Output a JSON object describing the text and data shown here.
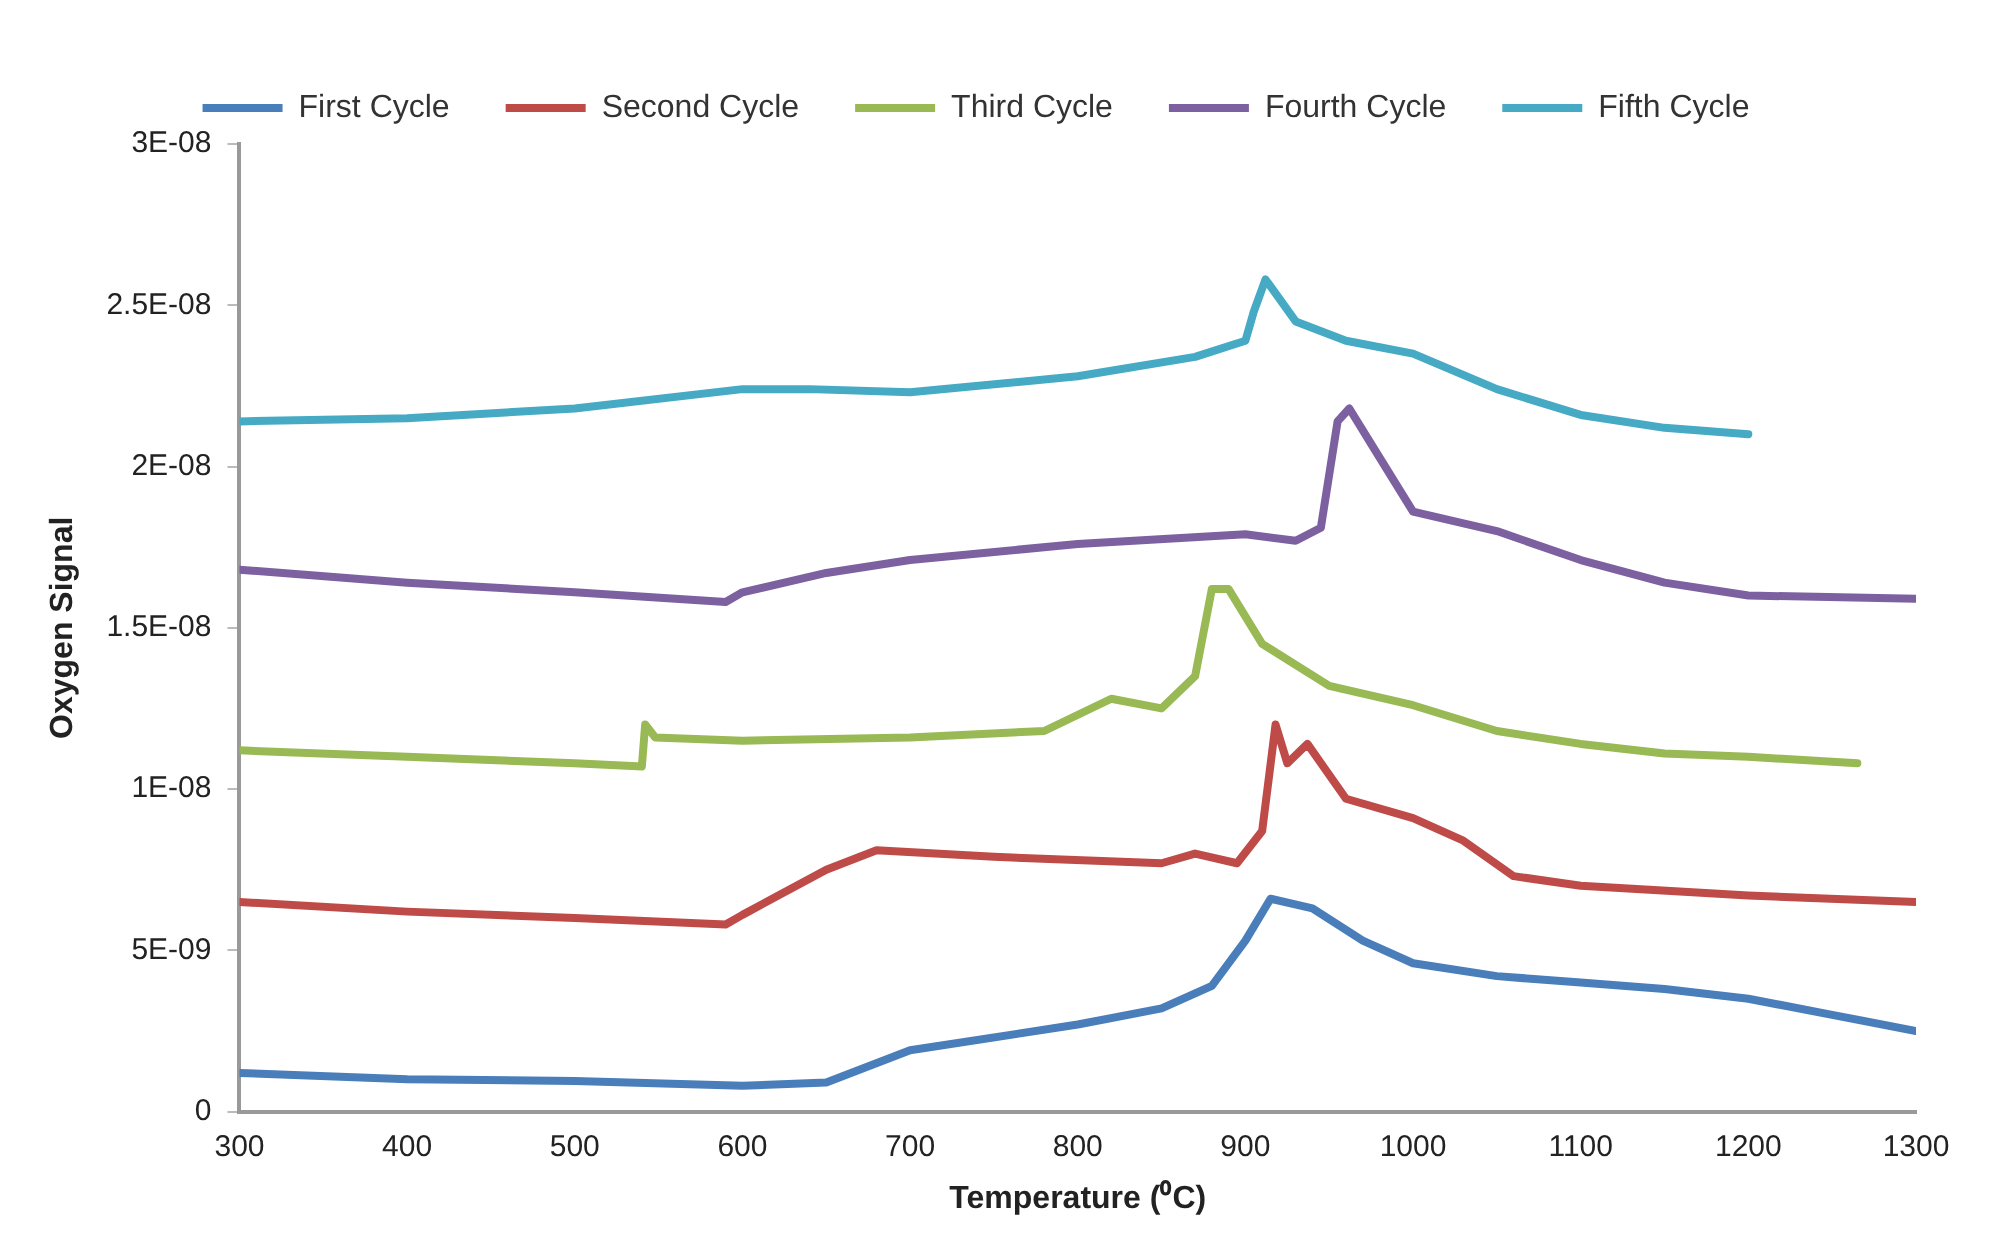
{
  "chart_data": {
    "type": "line",
    "xlabel": "Temperature (⁰C)",
    "ylabel": "Oxygen Signal",
    "legend": "top",
    "grid": false,
    "marker": "none",
    "line_style": "solid",
    "xlim": [
      300,
      1300
    ],
    "xticks": [
      300,
      400,
      500,
      600,
      700,
      800,
      900,
      1000,
      1100,
      1200,
      1300
    ],
    "ylim": [
      0,
      3e-08
    ],
    "yticks": [
      {
        "value": 0,
        "label": "0"
      },
      {
        "value": 5e-09,
        "label": "5E-09"
      },
      {
        "value": 1e-08,
        "label": "1E-08"
      },
      {
        "value": 1.5e-08,
        "label": "1.5E-08"
      },
      {
        "value": 2e-08,
        "label": "2E-08"
      },
      {
        "value": 2.5e-08,
        "label": "2.5E-08"
      },
      {
        "value": 3e-08,
        "label": "3E-08"
      }
    ],
    "series": [
      {
        "name": "First Cycle",
        "color": "#4a7ebb",
        "x": [
          300,
          400,
          500,
          600,
          650,
          700,
          800,
          850,
          880,
          900,
          915,
          940,
          970,
          1000,
          1050,
          1100,
          1150,
          1200,
          1250,
          1300
        ],
        "values": [
          1.2e-09,
          1e-09,
          9.5e-10,
          8e-10,
          9e-10,
          1.9e-09,
          2.7e-09,
          3.2e-09,
          3.9e-09,
          5.3e-09,
          6.6e-09,
          6.3e-09,
          5.3e-09,
          4.6e-09,
          4.2e-09,
          4e-09,
          3.8e-09,
          3.5e-09,
          3e-09,
          2.5e-09
        ]
      },
      {
        "name": "Second Cycle",
        "color": "#be4b48",
        "x": [
          300,
          400,
          500,
          590,
          600,
          650,
          680,
          750,
          850,
          870,
          895,
          910,
          918,
          925,
          937,
          960,
          1000,
          1030,
          1060,
          1100,
          1200,
          1300
        ],
        "values": [
          6.5e-09,
          6.2e-09,
          6e-09,
          5.8e-09,
          6.1e-09,
          7.5e-09,
          8.1e-09,
          7.9e-09,
          7.7e-09,
          8e-09,
          7.7e-09,
          8.7e-09,
          1.2e-08,
          1.08e-08,
          1.14e-08,
          9.7e-09,
          9.1e-09,
          8.4e-09,
          7.3e-09,
          7e-09,
          6.7e-09,
          6.5e-09
        ]
      },
      {
        "name": "Third Cycle",
        "color": "#98b954",
        "x": [
          300,
          400,
          500,
          540,
          542,
          548,
          600,
          700,
          780,
          820,
          850,
          870,
          880,
          890,
          910,
          950,
          1000,
          1050,
          1100,
          1150,
          1200,
          1265
        ],
        "values": [
          1.12e-08,
          1.1e-08,
          1.08e-08,
          1.07e-08,
          1.2e-08,
          1.16e-08,
          1.15e-08,
          1.16e-08,
          1.18e-08,
          1.28e-08,
          1.25e-08,
          1.35e-08,
          1.62e-08,
          1.62e-08,
          1.45e-08,
          1.32e-08,
          1.26e-08,
          1.18e-08,
          1.14e-08,
          1.11e-08,
          1.1e-08,
          1.08e-08
        ]
      },
      {
        "name": "Fourth Cycle",
        "color": "#7d60a0",
        "x": [
          300,
          400,
          500,
          590,
          600,
          650,
          700,
          800,
          900,
          930,
          945,
          955,
          962,
          975,
          1000,
          1050,
          1100,
          1150,
          1200,
          1300
        ],
        "values": [
          1.68e-08,
          1.64e-08,
          1.61e-08,
          1.58e-08,
          1.61e-08,
          1.67e-08,
          1.71e-08,
          1.76e-08,
          1.79e-08,
          1.77e-08,
          1.81e-08,
          2.14e-08,
          2.18e-08,
          2.07e-08,
          1.86e-08,
          1.8e-08,
          1.71e-08,
          1.64e-08,
          1.6e-08,
          1.59e-08
        ]
      },
      {
        "name": "Fifth Cycle",
        "color": "#46aac5",
        "x": [
          300,
          400,
          500,
          600,
          640,
          700,
          800,
          870,
          900,
          905,
          912,
          930,
          960,
          1000,
          1050,
          1100,
          1150,
          1200
        ],
        "values": [
          2.14e-08,
          2.15e-08,
          2.18e-08,
          2.24e-08,
          2.24e-08,
          2.23e-08,
          2.28e-08,
          2.34e-08,
          2.39e-08,
          2.48e-08,
          2.58e-08,
          2.45e-08,
          2.39e-08,
          2.35e-08,
          2.24e-08,
          2.16e-08,
          2.12e-08,
          2.1e-08
        ]
      }
    ]
  }
}
